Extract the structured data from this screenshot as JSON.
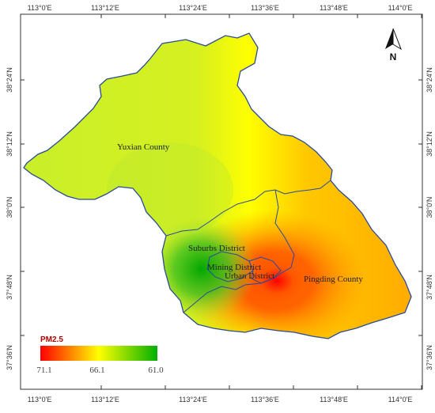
{
  "map": {
    "lon_ticks": [
      "113°0'E",
      "113°12'E",
      "113°24'E",
      "113°36'E",
      "113°48'E",
      "114°0'E"
    ],
    "lat_ticks": [
      "38°24'N",
      "38°12'N",
      "38°0'N",
      "37°48'N",
      "37°36'N"
    ],
    "regions": {
      "yuxian": "Yuxian County",
      "suburbs": "Suburbs District",
      "mining": "Mining District",
      "urban": "Urban District",
      "pingding": "Pingding County"
    },
    "north_arrow_label": "N",
    "legend": {
      "title": "PM2.5",
      "high_label": "71.1",
      "mid_label": "66.1",
      "low_label": "61.0",
      "colors": [
        "#ff0000",
        "#ffff00",
        "#00b000"
      ]
    },
    "colors": {
      "boundary": "#2a4a9a",
      "frame": "#333333"
    }
  }
}
